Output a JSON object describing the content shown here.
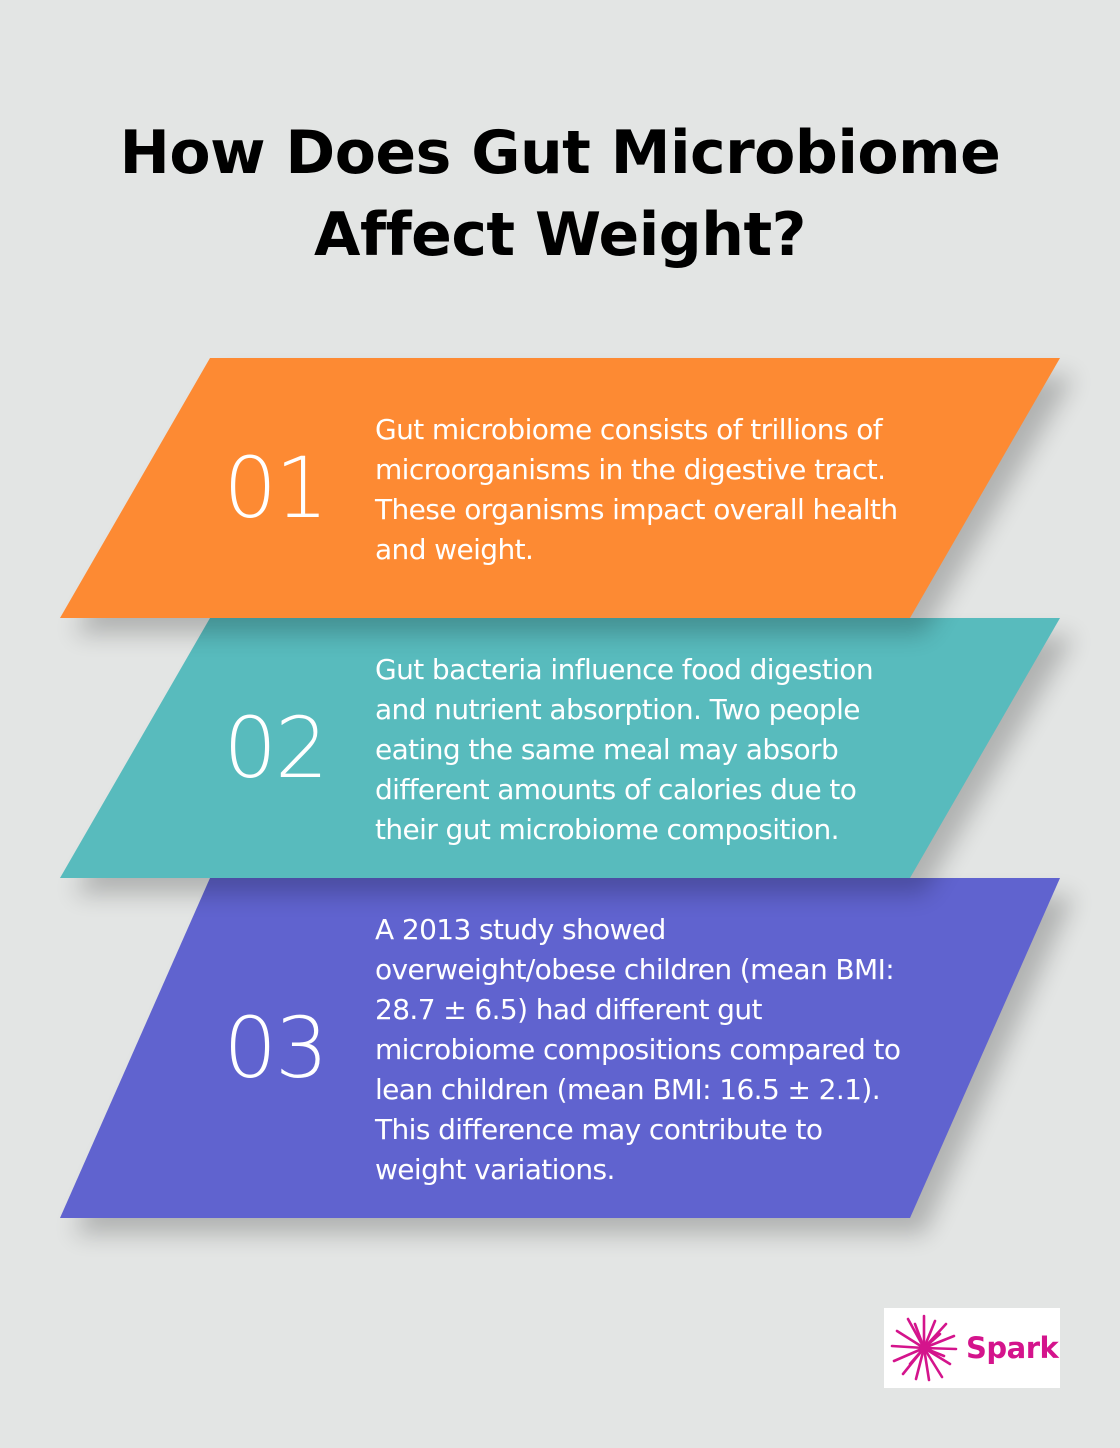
{
  "title": "How Does Gut Microbiome Affect Weight?",
  "colors": {
    "background": "#e3e5e4",
    "step_1": "#fd8a33",
    "step_2": "#58bbbd",
    "step_3": "#6063cf",
    "brand": "#d4148c"
  },
  "steps": [
    {
      "number": "01",
      "text": "Gut microbiome consists of trillions of microorganisms in the digestive tract. These organisms impact overall health and weight."
    },
    {
      "number": "02",
      "text": "Gut bacteria influence food digestion and nutrient absorption. Two people eating the same meal may absorb different amounts of calories due to their gut microbiome composition."
    },
    {
      "number": "03",
      "text": "A 2013 study showed overweight/obese children (mean BMI: 28.7 ± 6.5) had different gut microbiome compositions compared to lean children (mean BMI: 16.5 ± 2.1). This difference may contribute to weight variations."
    }
  ],
  "logo": {
    "icon": "spark-burst-icon",
    "text": "Spark"
  }
}
